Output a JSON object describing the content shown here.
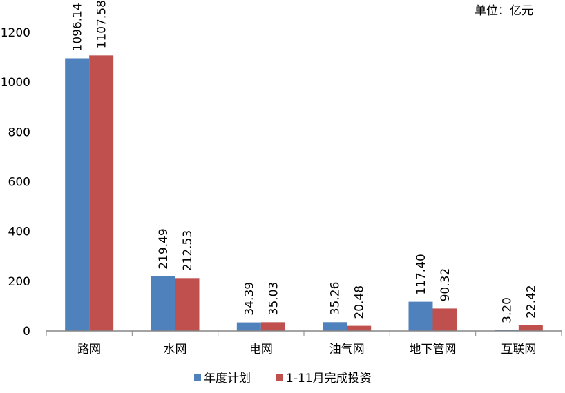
{
  "chart_data": {
    "type": "bar",
    "unit_label": "单位：亿元",
    "categories": [
      "路网",
      "水网",
      "电网",
      "油气网",
      "地下管网",
      "互联网"
    ],
    "series": [
      {
        "name": "年度计划",
        "color": "#4F81BD",
        "values": [
          1096.14,
          219.49,
          34.39,
          35.26,
          117.4,
          3.2
        ]
      },
      {
        "name": "1-11月完成投资",
        "color": "#C0504D",
        "values": [
          1107.58,
          212.53,
          35.03,
          20.48,
          90.32,
          22.42
        ]
      }
    ],
    "yticks": [
      "0",
      "200",
      "400",
      "600",
      "800",
      "1000",
      "1200"
    ],
    "ylim": [
      0,
      1200
    ],
    "legend": "bottom",
    "grid": false
  }
}
